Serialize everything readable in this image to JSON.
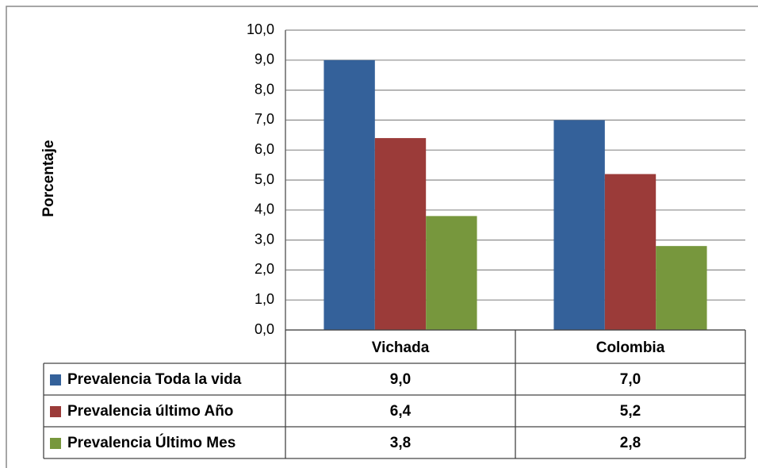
{
  "chart_data": {
    "type": "bar",
    "y_label": "Porcentaje",
    "categories": [
      "Vichada",
      "Colombia"
    ],
    "series": [
      {
        "name": "Prevalencia Toda la vida",
        "color": "#34619a",
        "values": [
          9.0,
          7.0
        ],
        "value_labels": [
          "9,0",
          "7,0"
        ]
      },
      {
        "name": "Prevalencia último Año",
        "color": "#9b3b39",
        "values": [
          6.4,
          5.2
        ],
        "value_labels": [
          "6,4",
          "5,2"
        ]
      },
      {
        "name": "Prevalencia Último Mes",
        "color": "#77973d",
        "values": [
          3.8,
          2.8
        ],
        "value_labels": [
          "3,8",
          "2,8"
        ]
      }
    ],
    "ylim": [
      0,
      10
    ],
    "yticks": [
      {
        "value": 0,
        "label": "0,0"
      },
      {
        "value": 1,
        "label": "1,0"
      },
      {
        "value": 2,
        "label": "2,0"
      },
      {
        "value": 3,
        "label": "3,0"
      },
      {
        "value": 4,
        "label": "4,0"
      },
      {
        "value": 5,
        "label": "5,0"
      },
      {
        "value": 6,
        "label": "6,0"
      },
      {
        "value": 7,
        "label": "7,0"
      },
      {
        "value": 8,
        "label": "8,0"
      },
      {
        "value": 9,
        "label": "9,0"
      },
      {
        "value": 10,
        "label": "10,0"
      }
    ],
    "grid": true
  }
}
